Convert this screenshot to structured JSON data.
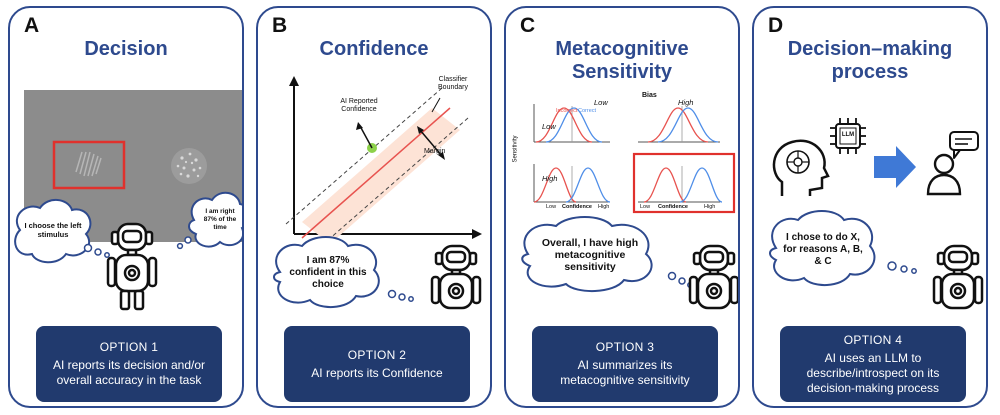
{
  "panels": [
    {
      "letter": "A",
      "title": "Decision",
      "thought_left": "I choose the left stimulus",
      "thought_right": "I am right 87% of the time",
      "option_label": "OPTION 1",
      "option_desc": "AI reports its decision and/or overall accuracy in the task"
    },
    {
      "letter": "B",
      "title": "Confidence",
      "label_confidence": "AI Reported Confidence",
      "label_boundary_1": "Classifier",
      "label_boundary_2": "Boundary",
      "label_margin": "Margin",
      "thought": "I am 87% confident in this choice",
      "option_label": "OPTION 2",
      "option_desc": "AI reports its Confidence"
    },
    {
      "letter": "C",
      "title_line1": "Metacognitive",
      "title_line2": "Sensitivity",
      "bias_label": "Bias",
      "low_col": "Low",
      "high_col": "High",
      "low_row": "Low",
      "high_row": "High",
      "sensitivity_label": "Sensitivity",
      "incorrect_label": "Incorrect",
      "correct_label": "Correct",
      "conf_low": "Low",
      "conf_high": "High",
      "confidence_label": "Confidence",
      "thought": "Overall, I have high metacognitive sensitivity",
      "option_label": "OPTION 3",
      "option_desc": "AI summarizes its metacognitive sensitivity"
    },
    {
      "letter": "D",
      "title_line1": "Decision–making",
      "title_line2": "process",
      "chip_label": "LLM",
      "thought": "I chose to do X, for reasons A, B, & C",
      "option_label": "OPTION 4",
      "option_desc": "AI uses an LLM to describe/introspect on its decision-making process"
    }
  ],
  "colors": {
    "frame": "#2e4a8e",
    "option_bg": "#213a6e",
    "highlight_red": "#e0312d",
    "band_fill": "#fde3d6",
    "curve_red": "#e8534f",
    "curve_blue": "#4f8ee8",
    "point_green": "#8dd14a",
    "arrow_blue": "#3f79d6"
  },
  "icons": [
    "robot-icon",
    "head-brain-icon",
    "llm-chip-icon",
    "arrow-right-icon",
    "person-chat-icon"
  ]
}
